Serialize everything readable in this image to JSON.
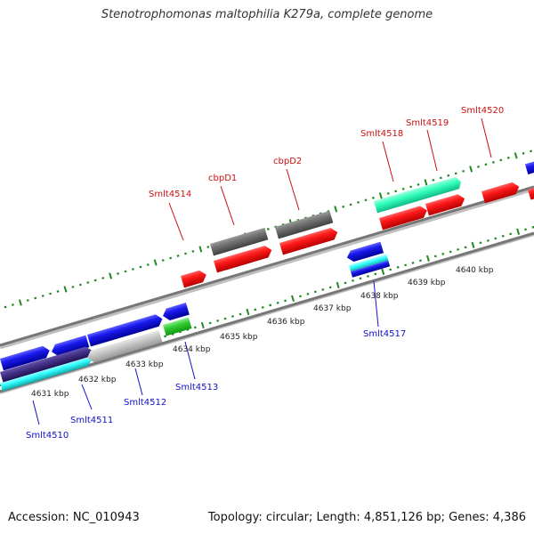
{
  "title": "Stenotrophomonas maltophilia K279a, complete genome",
  "footer": {
    "accession": "Accession: NC_010943",
    "summary": "Topology: circular; Length: 4,851,126 bp; Genes: 4,386"
  },
  "axis_labels": [
    "4631 kbp",
    "4632 kbp",
    "4633 kbp",
    "4634 kbp",
    "4635 kbp",
    "4636 kbp",
    "4637 kbp",
    "4638 kbp",
    "4639 kbp",
    "4640 kbp"
  ],
  "genes_labeled": [
    {
      "name": "Smlt4510",
      "color": "#1010cc"
    },
    {
      "name": "Smlt4511",
      "color": "#1010cc"
    },
    {
      "name": "Smlt4512",
      "color": "#1010cc"
    },
    {
      "name": "Smlt4513",
      "color": "#1010cc"
    },
    {
      "name": "Smlt4514",
      "color": "#cc1010"
    },
    {
      "name": "cbpD1",
      "color": "#cc1010"
    },
    {
      "name": "cbpD2",
      "color": "#cc1010"
    },
    {
      "name": "Smlt4517",
      "color": "#1010cc"
    },
    {
      "name": "Smlt4518",
      "color": "#cc1010"
    },
    {
      "name": "Smlt4519",
      "color": "#cc1010"
    },
    {
      "name": "Smlt4520",
      "color": "#cc1010"
    }
  ],
  "colors": {
    "forward_cds": "#ff1a1a",
    "reverse_cds": "#1a1aee",
    "gray_feature": "#707070",
    "light_gray_feature": "#c8c8c8",
    "green_feature": "#33cc33",
    "teal_feature": "#33ffbb",
    "cyan_feature": "#33ffff",
    "navy_feature": "#443388",
    "tick_green": "#228822",
    "backbone": "#888888"
  }
}
